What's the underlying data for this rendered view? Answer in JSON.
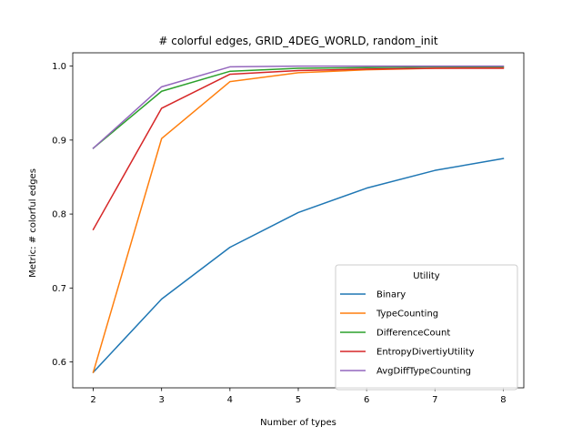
{
  "chart_data": {
    "type": "line",
    "title": "# colorful edges, GRID_4DEG_WORLD, random_init",
    "xlabel": "Number of types",
    "ylabel": "Metric: # colorful edges",
    "x": [
      2,
      3,
      4,
      5,
      6,
      7,
      8
    ],
    "xlim": [
      1.7,
      8.3
    ],
    "ylim": [
      0.565,
      1.018
    ],
    "xticks": [
      "2",
      "3",
      "4",
      "5",
      "6",
      "7",
      "8"
    ],
    "yticks": [
      "0.6",
      "0.7",
      "0.8",
      "0.9",
      "1.0"
    ],
    "ytick_values": [
      0.6,
      0.7,
      0.8,
      0.9,
      1.0
    ],
    "grid": false,
    "legend": {
      "title": "Utility",
      "placement": "lower-right"
    },
    "series": [
      {
        "name": "Binary",
        "color": "#1f77b4",
        "values": [
          0.586,
          0.685,
          0.755,
          0.802,
          0.835,
          0.859,
          0.875
        ]
      },
      {
        "name": "TypeCounting",
        "color": "#ff7f0e",
        "values": [
          0.586,
          0.902,
          0.979,
          0.991,
          0.995,
          0.997,
          0.998
        ]
      },
      {
        "name": "DifferenceCount",
        "color": "#2ca02c",
        "values": [
          0.889,
          0.966,
          0.993,
          0.997,
          0.998,
          0.999,
          0.999
        ]
      },
      {
        "name": "EntropyDivertiyUtility",
        "color": "#d62728",
        "values": [
          0.779,
          0.943,
          0.989,
          0.994,
          0.996,
          0.997,
          0.997
        ]
      },
      {
        "name": "AvgDiffTypeCounting",
        "color": "#9467bd",
        "values": [
          0.889,
          0.972,
          0.999,
          1.0,
          1.0,
          1.0,
          1.0
        ]
      }
    ]
  }
}
